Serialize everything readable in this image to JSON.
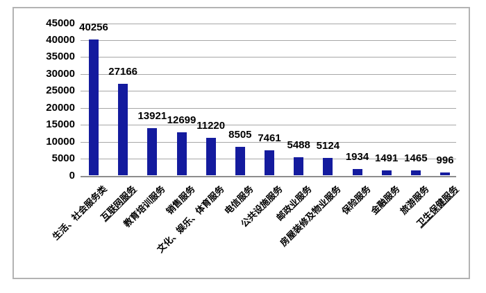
{
  "chart_data": {
    "type": "bar",
    "title": "",
    "xlabel": "",
    "ylabel": "",
    "categories": [
      "生活、社会服务类",
      "互联网服务",
      "教育培训服务",
      "销售服务",
      "文化、娱乐、体育服务",
      "电信服务",
      "公共设施服务",
      "邮政业服务",
      "房屋装修及物业服务",
      "保险服务",
      "金融服务",
      "旅游服务",
      "卫生保健服务"
    ],
    "values": [
      40256,
      27166,
      13921,
      12699,
      11220,
      8505,
      7461,
      5488,
      5124,
      1934,
      1491,
      1465,
      996
    ],
    "value_labels": [
      "40256",
      "27166",
      "13921",
      "12699",
      "11220",
      "8505",
      "7461",
      "5488",
      "5124",
      "1934",
      "1491",
      "1465",
      "996"
    ],
    "underlined_categories": [
      "互联网服务",
      "卫生保健服务"
    ],
    "ylim": [
      0,
      45000
    ],
    "ytick_step": 5000,
    "ytick_labels": [
      "0",
      "5000",
      "10000",
      "15000",
      "20000",
      "25000",
      "30000",
      "35000",
      "40000",
      "45000"
    ],
    "grid": true,
    "legend": false,
    "data_labels_shown": true,
    "category_label_rotation_deg": -45
  },
  "colors": {
    "bar": "#141b9e",
    "gridline": "#a6a6a6",
    "axis_line": "#8c8c8c",
    "border": "#b3b3b3",
    "text": "#000000",
    "background": "#ffffff"
  }
}
